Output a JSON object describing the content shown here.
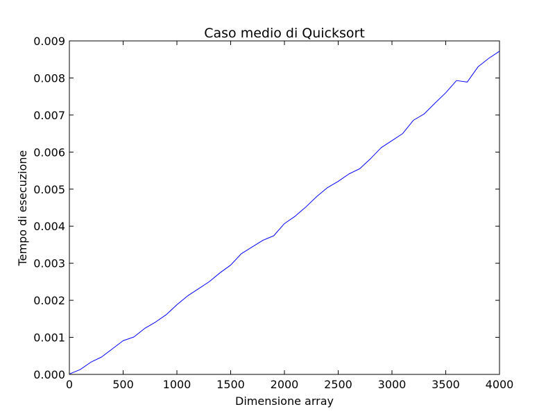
{
  "chart_data": {
    "type": "line",
    "title": "Caso medio di Quicksort",
    "xlabel": "Dimensione array",
    "ylabel": "Tempo di esecuzione",
    "xlim": [
      0,
      4000
    ],
    "ylim": [
      0.0,
      0.009
    ],
    "x_ticks": [
      0,
      500,
      1000,
      1500,
      2000,
      2500,
      3000,
      3500,
      4000
    ],
    "x_tick_labels": [
      "0",
      "500",
      "1000",
      "1500",
      "2000",
      "2500",
      "3000",
      "3500",
      "4000"
    ],
    "y_ticks": [
      0.0,
      0.001,
      0.002,
      0.003,
      0.004,
      0.005,
      0.006,
      0.007,
      0.008,
      0.009
    ],
    "y_tick_labels": [
      "0.000",
      "0.001",
      "0.002",
      "0.003",
      "0.004",
      "0.005",
      "0.006",
      "0.007",
      "0.008",
      "0.009"
    ],
    "grid": false,
    "series": [
      {
        "color": "#0000ff",
        "x": [
          0,
          100,
          200,
          300,
          400,
          500,
          600,
          700,
          800,
          900,
          1000,
          1100,
          1200,
          1300,
          1400,
          1500,
          1600,
          1700,
          1800,
          1900,
          2000,
          2100,
          2200,
          2300,
          2400,
          2500,
          2600,
          2700,
          2800,
          2900,
          3000,
          3100,
          3200,
          3300,
          3400,
          3500,
          3600,
          3700,
          3800,
          3900,
          4000
        ],
        "y": [
          1e-05,
          0.00013,
          0.00033,
          0.00047,
          0.00069,
          0.00091,
          0.00101,
          0.00124,
          0.00141,
          0.00161,
          0.00188,
          0.00212,
          0.00231,
          0.0025,
          0.00274,
          0.00295,
          0.00326,
          0.00344,
          0.00362,
          0.00374,
          0.00407,
          0.00427,
          0.00452,
          0.0048,
          0.00504,
          0.00521,
          0.00541,
          0.00555,
          0.00582,
          0.00612,
          0.00631,
          0.0065,
          0.00686,
          0.00703,
          0.00732,
          0.0076,
          0.00793,
          0.00789,
          0.0083,
          0.00853,
          0.00872
        ]
      }
    ]
  }
}
